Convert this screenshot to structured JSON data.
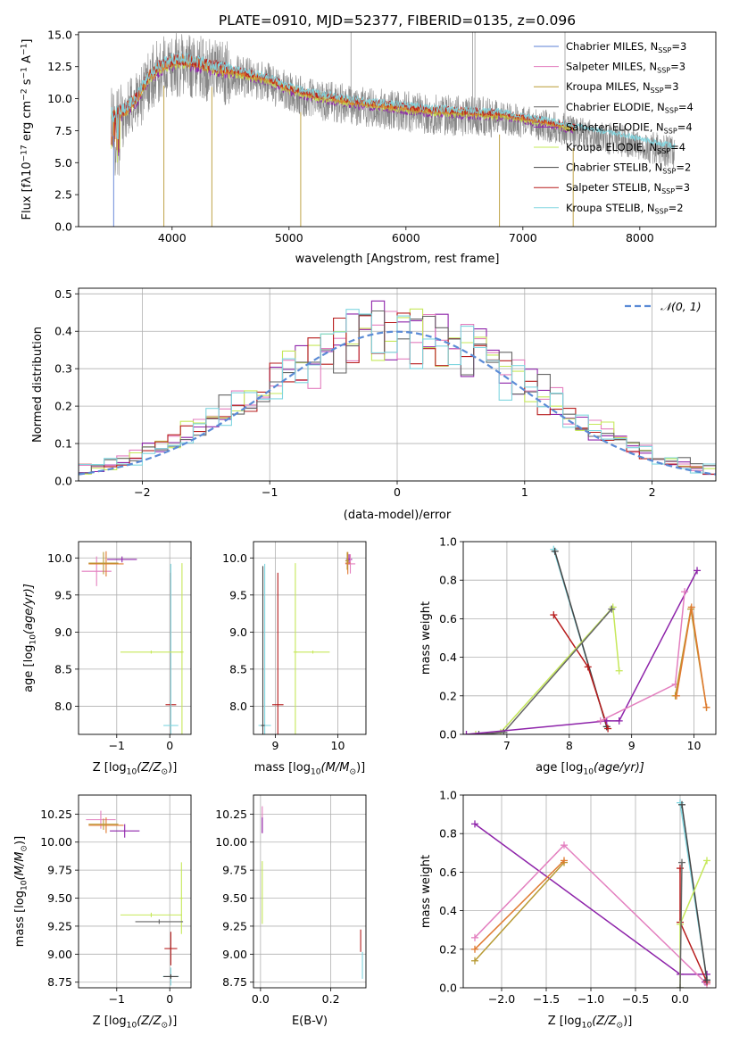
{
  "figure_title": "PLATE=0910, MJD=52377, FIBERID=0135, z=0.096",
  "model_colors": {
    "Chabrier MILES": "#5b7fd6",
    "Salpeter MILES": "#e37fbf",
    "Kroupa MILES": "#b89a34",
    "Chabrier ELODIE": "#666666",
    "Salpeter ELODIE": "#8e24aa",
    "Kroupa ELODIE": "#c6e85a",
    "Chabrier STELIB": "#444444",
    "Salpeter STELIB": "#b71c1c",
    "Kroupa STELIB": "#80d6e0",
    "data_gray": "#808080",
    "orange": "#e07a30",
    "gauss": "#5b8bd6"
  },
  "chart_data": [
    {
      "id": "spectrum",
      "type": "line",
      "xlabel": "wavelength [Angstrom, rest frame]",
      "ylabel_parts": [
        "Flux [f",
        "λ",
        "10",
        "−17",
        " erg cm",
        "−2",
        " s",
        "−1",
        " A",
        "−1",
        "]"
      ],
      "xlim": [
        3200,
        8650
      ],
      "ylim": [
        0,
        15.2
      ],
      "xticks": [
        4000,
        5000,
        6000,
        7000,
        8000
      ],
      "yticks": [
        0.0,
        2.5,
        5.0,
        7.5,
        10.0,
        12.5,
        15.0
      ],
      "ytick_labels": [
        "0.0",
        "2.5",
        "5.0",
        "7.5",
        "10.0",
        "12.5",
        "15.0"
      ],
      "legend_position": "top-right",
      "legend": [
        {
          "base": "Chabrier MILES, N",
          "sub": "SSP",
          "post": "=3",
          "color_key": "Chabrier MILES"
        },
        {
          "base": "Salpeter MILES, N",
          "sub": "SSP",
          "post": "=3",
          "color_key": "Salpeter MILES"
        },
        {
          "base": "Kroupa MILES, N",
          "sub": "SSP",
          "post": "=3",
          "color_key": "Kroupa MILES"
        },
        {
          "base": "Chabrier ELODIE, N",
          "sub": "SSP",
          "post": "=4",
          "color_key": "Chabrier ELODIE"
        },
        {
          "base": "Salpeter ELODIE, N",
          "sub": "SSP",
          "post": "=4",
          "color_key": "Salpeter ELODIE"
        },
        {
          "base": "Kroupa ELODIE, N",
          "sub": "SSP",
          "post": "=4",
          "color_key": "Kroupa ELODIE"
        },
        {
          "base": "Chabrier STELIB, N",
          "sub": "SSP",
          "post": "=2",
          "color_key": "Chabrier STELIB"
        },
        {
          "base": "Salpeter STELIB, N",
          "sub": "SSP",
          "post": "=3",
          "color_key": "Salpeter STELIB"
        },
        {
          "base": "Kroupa STELIB, N",
          "sub": "SSP",
          "post": "=2",
          "color_key": "Kroupa STELIB"
        }
      ],
      "continuum": {
        "x": [
          3500,
          3600,
          3700,
          3800,
          3900,
          4000,
          4100,
          4200,
          4400,
          4600,
          4800,
          5000,
          5200,
          5400,
          5600,
          5800,
          6000,
          6200,
          6400,
          6600,
          6800,
          7000,
          7200,
          7400,
          7600,
          7800,
          8000,
          8200,
          8300
        ],
        "y": [
          8.6,
          9.0,
          10.0,
          11.6,
          12.4,
          12.8,
          12.9,
          12.7,
          12.3,
          11.9,
          11.5,
          10.7,
          10.2,
          9.9,
          9.6,
          9.4,
          9.2,
          9.0,
          8.9,
          8.8,
          8.7,
          8.4,
          8.1,
          7.7,
          7.3,
          7.0,
          6.6,
          6.2,
          6.0
        ]
      },
      "series": [
        {
          "color_key": "data_gray",
          "x_range": [
            3480,
            8300
          ],
          "noise": 1.6
        },
        {
          "color_key": "Salpeter ELODIE",
          "x_range": [
            3480,
            7450
          ],
          "noise": 0.35
        },
        {
          "color_key": "Kroupa ELODIE",
          "x_range": [
            3480,
            7450
          ],
          "noise": 0.35
        },
        {
          "color_key": "Kroupa MILES",
          "x_range": [
            3480,
            7450
          ],
          "noise": 0.3
        },
        {
          "color_key": "orange",
          "x_range": [
            3480,
            7450
          ],
          "noise": 0.3
        },
        {
          "color_key": "Salpeter STELIB",
          "x_range": [
            3480,
            7450
          ],
          "noise": 0.3
        },
        {
          "color_key": "Kroupa STELIB",
          "x_range": [
            3480,
            8300
          ],
          "noise": 0.3
        }
      ],
      "drop_lines": [
        3500,
        3930,
        4340,
        5100,
        6800,
        7430
      ],
      "spikes": [
        5530,
        6570,
        6590,
        7360
      ]
    },
    {
      "id": "residuals",
      "type": "step",
      "xlabel": "(data-model)/error",
      "ylabel": "Normed distribution",
      "xlim": [
        -2.5,
        2.5
      ],
      "ylim": [
        0,
        0.515
      ],
      "xticks": [
        -2,
        -1,
        0,
        1,
        2
      ],
      "xtick_labels": [
        "−2",
        "−1",
        "0",
        "1",
        "2"
      ],
      "yticks": [
        0.0,
        0.1,
        0.2,
        0.3,
        0.4,
        0.5
      ],
      "ytick_labels": [
        "0.0",
        "0.1",
        "0.2",
        "0.3",
        "0.4",
        "0.5"
      ],
      "grid": true,
      "legend_label": "𝒩(0, 1)",
      "legend_position": "top-right",
      "bin_width": 0.1,
      "hist_series": [
        {
          "color_key": "Salpeter ELODIE",
          "seed": 3
        },
        {
          "color_key": "Salpeter MILES",
          "seed": 7
        },
        {
          "color_key": "Kroupa ELODIE",
          "seed": 11
        },
        {
          "color_key": "Salpeter STELIB",
          "seed": 19
        },
        {
          "color_key": "Chabrier ELODIE",
          "seed": 23
        },
        {
          "color_key": "Kroupa STELIB",
          "seed": 29
        }
      ]
    },
    {
      "id": "age_vs_Z",
      "type": "errorbar",
      "xlabel_parts": [
        "Z [log",
        "10",
        "(Z/Z",
        "⊙",
        ")]"
      ],
      "ylabel_parts": [
        "age  [log",
        "10",
        "(age/yr)]"
      ],
      "xlim": [
        -1.72,
        0.4
      ],
      "ylim": [
        7.62,
        10.22
      ],
      "xticks": [
        -1,
        0
      ],
      "xtick_labels": [
        "−1",
        "0"
      ],
      "yticks": [
        8.0,
        8.5,
        9.0,
        9.5,
        10.0
      ],
      "ytick_labels": [
        "8.0",
        "8.5",
        "9.0",
        "9.5",
        "10.0"
      ],
      "points": [
        {
          "x": -1.38,
          "y": 9.82,
          "xerr": 0.28,
          "yerr": 0.2,
          "color_key": "Salpeter MILES"
        },
        {
          "x": -0.9,
          "y": 9.98,
          "xerr": 0.28,
          "yerr": 0.04,
          "color_key": "Salpeter ELODIE"
        },
        {
          "x": -1.2,
          "y": 9.92,
          "xerr": 0.33,
          "yerr": 0.17,
          "color_key": "orange"
        },
        {
          "x": -1.25,
          "y": 9.93,
          "xerr": 0.28,
          "yerr": 0.15,
          "color_key": "Kroupa MILES"
        },
        {
          "x": 0.02,
          "y": 8.02,
          "xerr": 0.1,
          "yerr": 1.78,
          "color_key": "Salpeter STELIB"
        },
        {
          "x": 0.02,
          "y": 7.74,
          "xerr": 0.14,
          "yerr": 2.18,
          "color_key": "Kroupa STELIB"
        },
        {
          "x": -0.35,
          "y": 8.73,
          "xerr": 0.58,
          "yerr": 0.02,
          "color_key": "Kroupa ELODIE"
        },
        {
          "x": 0.23,
          "y": 8.73,
          "xerr": 0.03,
          "yerr": 1.2,
          "color_key": "Kroupa ELODIE"
        }
      ]
    },
    {
      "id": "age_vs_mass",
      "type": "errorbar",
      "xlabel_parts": [
        "mass [log",
        "10",
        "(M/M",
        "⊙",
        ")]"
      ],
      "ylabel_parts": [],
      "xlim": [
        8.65,
        10.45
      ],
      "ylim": [
        7.62,
        10.22
      ],
      "xticks": [
        9,
        10
      ],
      "xtick_labels": [
        "9",
        "10"
      ],
      "yticks": [
        8.0,
        8.5,
        9.0,
        9.5,
        10.0
      ],
      "ytick_labels": [
        "8.0",
        "8.5",
        "9.0",
        "9.5",
        "10.0"
      ],
      "points": [
        {
          "x": 8.83,
          "y": 7.74,
          "xerr": 0.1,
          "yerr": 2.18,
          "color_key": "Kroupa STELIB"
        },
        {
          "x": 8.8,
          "y": 7.74,
          "xerr": 0.03,
          "yerr": 2.15,
          "color_key": "Chabrier STELIB"
        },
        {
          "x": 9.04,
          "y": 8.02,
          "xerr": 0.09,
          "yerr": 1.78,
          "color_key": "Salpeter STELIB"
        },
        {
          "x": 9.32,
          "y": 8.73,
          "xerr": 0.03,
          "yerr": 1.2,
          "color_key": "Kroupa ELODIE"
        },
        {
          "x": 9.6,
          "y": 8.73,
          "xerr": 0.27,
          "yerr": 0.02,
          "color_key": "Kroupa ELODIE"
        },
        {
          "x": 10.18,
          "y": 9.98,
          "xerr": 0.05,
          "yerr": 0.07,
          "color_key": "Salpeter ELODIE"
        },
        {
          "x": 10.2,
          "y": 9.92,
          "xerr": 0.08,
          "yerr": 0.13,
          "color_key": "Salpeter MILES"
        },
        {
          "x": 10.16,
          "y": 9.93,
          "xerr": 0.04,
          "yerr": 0.15,
          "color_key": "orange"
        },
        {
          "x": 10.15,
          "y": 9.96,
          "xerr": 0.03,
          "yerr": 0.12,
          "color_key": "Kroupa MILES"
        }
      ]
    },
    {
      "id": "weight_vs_age",
      "type": "line",
      "xlabel_parts": [
        "age  [log",
        "10",
        "(age/yr)]"
      ],
      "ylabel": "mass weight",
      "xlim": [
        6.3,
        10.35
      ],
      "ylim": [
        0,
        1.0
      ],
      "xticks": [
        7,
        8,
        9,
        10
      ],
      "xtick_labels": [
        "7",
        "8",
        "9",
        "10"
      ],
      "yticks": [
        0.0,
        0.2,
        0.4,
        0.6,
        0.8,
        1.0
      ],
      "ytick_labels": [
        "0.0",
        "0.2",
        "0.4",
        "0.6",
        "0.8",
        "1.0"
      ],
      "grid": true,
      "series": [
        {
          "color_key": "Kroupa STELIB",
          "x": [
            7.75,
            8.6
          ],
          "y": [
            0.96,
            0.04
          ]
        },
        {
          "color_key": "Chabrier STELIB",
          "x": [
            7.77,
            8.6
          ],
          "y": [
            0.95,
            0.04
          ]
        },
        {
          "color_key": "Salpeter STELIB",
          "x": [
            7.75,
            8.3,
            8.62
          ],
          "y": [
            0.62,
            0.35,
            0.03
          ]
        },
        {
          "color_key": "Kroupa ELODIE",
          "x": [
            6.5,
            6.9,
            8.7,
            8.8
          ],
          "y": [
            0.0,
            0.01,
            0.66,
            0.33
          ]
        },
        {
          "color_key": "Chabrier ELODIE",
          "x": [
            6.55,
            6.95,
            8.68
          ],
          "y": [
            0.0,
            0.01,
            0.65
          ]
        },
        {
          "color_key": "Salpeter ELODIE",
          "x": [
            6.35,
            8.6,
            8.8,
            10.05
          ],
          "y": [
            0.0,
            0.07,
            0.07,
            0.85
          ]
        },
        {
          "color_key": "Salpeter MILES",
          "x": [
            8.5,
            9.7,
            9.85
          ],
          "y": [
            0.07,
            0.26,
            0.74
          ]
        },
        {
          "color_key": "Kroupa MILES",
          "x": [
            9.7,
            9.95,
            10.2
          ],
          "y": [
            0.2,
            0.65,
            0.14
          ]
        },
        {
          "color_key": "orange",
          "x": [
            9.72,
            9.96,
            10.2
          ],
          "y": [
            0.2,
            0.66,
            0.14
          ]
        }
      ]
    },
    {
      "id": "mass_vs_Z",
      "type": "errorbar",
      "xlabel_parts": [
        "Z [log",
        "10",
        "(Z/Z",
        "⊙",
        ")]"
      ],
      "ylabel_parts": [
        "mass [log",
        "10",
        "(M/M",
        "⊙",
        ")]"
      ],
      "xlim": [
        -1.72,
        0.4
      ],
      "ylim": [
        8.7,
        10.42
      ],
      "xticks": [
        -1,
        0
      ],
      "xtick_labels": [
        "−1",
        "0"
      ],
      "yticks": [
        8.75,
        9.0,
        9.25,
        9.5,
        9.75,
        10.0,
        10.25
      ],
      "ytick_labels": [
        "8.75",
        "9.00",
        "9.25",
        "9.50",
        "9.75",
        "10.00",
        "10.25"
      ],
      "points": [
        {
          "x": -1.3,
          "y": 10.2,
          "xerr": 0.28,
          "yerr": 0.08,
          "color_key": "Salpeter MILES"
        },
        {
          "x": -1.2,
          "y": 10.15,
          "xerr": 0.33,
          "yerr": 0.07,
          "color_key": "orange"
        },
        {
          "x": -1.25,
          "y": 10.16,
          "xerr": 0.28,
          "yerr": 0.05,
          "color_key": "Kroupa MILES"
        },
        {
          "x": -0.85,
          "y": 10.1,
          "xerr": 0.28,
          "yerr": 0.06,
          "color_key": "Salpeter ELODIE"
        },
        {
          "x": -0.35,
          "y": 9.35,
          "xerr": 0.58,
          "yerr": 0.02,
          "color_key": "Kroupa ELODIE"
        },
        {
          "x": 0.22,
          "y": 9.5,
          "xerr": 0.03,
          "yerr": 0.32,
          "color_key": "Kroupa ELODIE"
        },
        {
          "x": -0.2,
          "y": 9.29,
          "xerr": 0.45,
          "yerr": 0.02,
          "color_key": "Chabrier ELODIE"
        },
        {
          "x": 0.02,
          "y": 9.05,
          "xerr": 0.12,
          "yerr": 0.15,
          "color_key": "Salpeter STELIB"
        },
        {
          "x": 0.02,
          "y": 8.8,
          "xerr": 0.15,
          "yerr": 0.08,
          "color_key": "Kroupa STELIB"
        },
        {
          "x": 0.02,
          "y": 8.8,
          "xerr": 0.14,
          "yerr": 0.02,
          "color_key": "Chabrier STELIB"
        }
      ]
    },
    {
      "id": "mass_vs_ebv",
      "type": "errorbar",
      "xlabel": "E(B-V)",
      "ylabel_parts": [],
      "xlim": [
        -0.02,
        0.3
      ],
      "ylim": [
        8.7,
        10.42
      ],
      "xticks": [
        0.0,
        0.2
      ],
      "xtick_labels": [
        "0.0",
        "0.2"
      ],
      "yticks": [
        8.75,
        9.0,
        9.25,
        9.5,
        9.75,
        10.0,
        10.25
      ],
      "ytick_labels": [
        "8.75",
        "9.00",
        "9.25",
        "9.50",
        "9.75",
        "10.00",
        "10.25"
      ],
      "points": [
        {
          "x": 0.005,
          "y": 10.2,
          "xerr": 0.0,
          "yerr": 0.12,
          "color_key": "Salpeter MILES"
        },
        {
          "x": 0.005,
          "y": 10.15,
          "xerr": 0.0,
          "yerr": 0.07,
          "color_key": "Salpeter ELODIE"
        },
        {
          "x": 0.005,
          "y": 9.55,
          "xerr": 0.0,
          "yerr": 0.28,
          "color_key": "Kroupa ELODIE"
        },
        {
          "x": 0.285,
          "y": 9.12,
          "xerr": 0.0,
          "yerr": 0.1,
          "color_key": "Salpeter STELIB"
        },
        {
          "x": 0.29,
          "y": 8.9,
          "xerr": 0.0,
          "yerr": 0.12,
          "color_key": "Kroupa STELIB"
        }
      ]
    },
    {
      "id": "weight_vs_Z",
      "type": "line",
      "xlabel_parts": [
        "Z [log",
        "10",
        "(Z/Z",
        "⊙",
        ")]"
      ],
      "ylabel": "mass weight",
      "xlim": [
        -2.43,
        0.4
      ],
      "ylim": [
        0,
        1.0
      ],
      "xticks": [
        -2.0,
        -1.5,
        -1.0,
        -0.5,
        0.0
      ],
      "xtick_labels": [
        "−2.0",
        "−1.5",
        "−1.0",
        "−0.5",
        "0.0"
      ],
      "yticks": [
        0.0,
        0.2,
        0.4,
        0.6,
        0.8,
        1.0
      ],
      "ytick_labels": [
        "0.0",
        "0.2",
        "0.4",
        "0.6",
        "0.8",
        "1.0"
      ],
      "grid": true,
      "series": [
        {
          "color_key": "Salpeter ELODIE",
          "x": [
            -2.3,
            0.0,
            0.3,
            0.28
          ],
          "y": [
            0.85,
            0.07,
            0.07,
            0.03
          ]
        },
        {
          "color_key": "Salpeter MILES",
          "x": [
            -2.3,
            -1.3,
            0.3
          ],
          "y": [
            0.26,
            0.74,
            0.02
          ]
        },
        {
          "color_key": "Kroupa MILES",
          "x": [
            -2.3,
            -1.3
          ],
          "y": [
            0.14,
            0.65
          ]
        },
        {
          "color_key": "orange",
          "x": [
            -2.3,
            -1.3
          ],
          "y": [
            0.2,
            0.66
          ]
        },
        {
          "color_key": "Salpeter STELIB",
          "x": [
            0.0,
            0.0,
            0.3
          ],
          "y": [
            0.62,
            0.34,
            0.03
          ]
        },
        {
          "color_key": "Kroupa STELIB",
          "x": [
            0.0,
            0.3
          ],
          "y": [
            0.96,
            0.04
          ]
        },
        {
          "color_key": "Chabrier STELIB",
          "x": [
            0.02,
            0.3
          ],
          "y": [
            0.95,
            0.04
          ]
        },
        {
          "color_key": "Kroupa ELODIE",
          "x": [
            0.0,
            0.0,
            0.3
          ],
          "y": [
            0.0,
            0.33,
            0.66
          ]
        },
        {
          "color_key": "Chabrier ELODIE",
          "x": [
            0.0,
            0.02
          ],
          "y": [
            0.0,
            0.65
          ]
        }
      ]
    }
  ]
}
